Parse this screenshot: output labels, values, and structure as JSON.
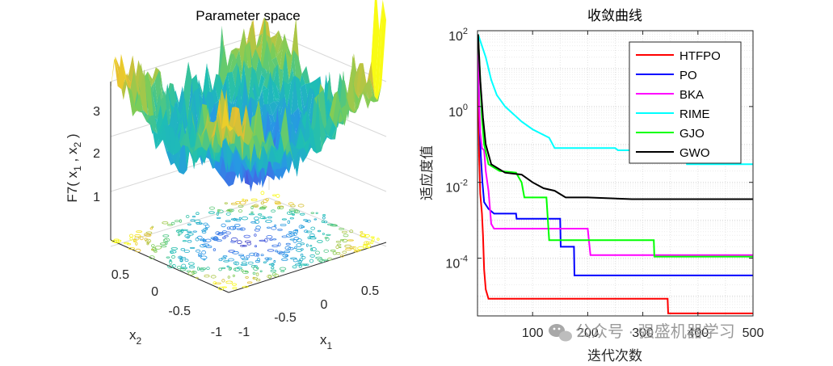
{
  "chart_data": [
    {
      "type": "surface3d",
      "title": "Parameter space",
      "zlabel": "F7( x",
      "zlabel_sub1": "1",
      "zlabel_sep": " , x",
      "zlabel_sub2": "2",
      "zlabel_end": " )",
      "xlabel": "x",
      "xlabel_sub": "1",
      "ylabel": "x",
      "ylabel_sub": "2",
      "z_ticks": [
        "1",
        "2",
        "3"
      ],
      "x1_ticks": [
        "-1",
        "-0.5",
        "0",
        "0.5"
      ],
      "x2_ticks": [
        "-1",
        "-0.5",
        "0",
        "0.5"
      ],
      "xlim": [
        -1,
        1
      ],
      "ylim": [
        -1,
        1
      ],
      "zlim": [
        0,
        3.5
      ]
    },
    {
      "type": "line",
      "title": "收敛曲线",
      "xlabel": "迭代次数",
      "ylabel": "适应度值",
      "yscale": "log",
      "xlim": [
        0,
        500
      ],
      "ylim": [
        3e-06,
        100
      ],
      "x_ticks": [
        "100",
        "200",
        "300",
        "400",
        "500"
      ],
      "y_ticks": [
        {
          "base": "10",
          "exp": "2",
          "value": 100
        },
        {
          "base": "10",
          "exp": "0",
          "value": 1
        },
        {
          "base": "10",
          "exp": "-2",
          "value": 0.01
        },
        {
          "base": "10",
          "exp": "-4",
          "value": 0.0001
        }
      ],
      "series": [
        {
          "name": "HTFPO",
          "color": "#ff0000",
          "points": [
            [
              1,
              80
            ],
            [
              2,
              0.6
            ],
            [
              3,
              0.05
            ],
            [
              5,
              0.005
            ],
            [
              8,
              0.0015
            ],
            [
              10,
              0.0004
            ],
            [
              12,
              5e-05
            ],
            [
              15,
              1.5e-05
            ],
            [
              20,
              8.5e-06
            ],
            [
              170,
              8.5e-06
            ],
            [
              345,
              8.5e-06
            ],
            [
              346,
              3.5e-06
            ],
            [
              500,
              3.5e-06
            ]
          ]
        },
        {
          "name": "PO",
          "color": "#0000ff",
          "points": [
            [
              1,
              80
            ],
            [
              2,
              5
            ],
            [
              4,
              0.3
            ],
            [
              6,
              0.05
            ],
            [
              9,
              0.01
            ],
            [
              12,
              0.003
            ],
            [
              20,
              0.002
            ],
            [
              30,
              0.0015
            ],
            [
              70,
              0.0015
            ],
            [
              71,
              0.0011
            ],
            [
              150,
              0.0011
            ],
            [
              151,
              0.0002
            ],
            [
              175,
              0.0002
            ],
            [
              176,
              3.5e-05
            ],
            [
              500,
              3.5e-05
            ]
          ]
        },
        {
          "name": "BKA",
          "color": "#ff00ff",
          "points": [
            [
              1,
              80
            ],
            [
              3,
              1
            ],
            [
              5,
              0.2
            ],
            [
              8,
              0.08
            ],
            [
              12,
              0.07
            ],
            [
              15,
              0.02
            ],
            [
              20,
              0.006
            ],
            [
              25,
              0.0008
            ],
            [
              30,
              0.0006
            ],
            [
              200,
              0.0006
            ],
            [
              205,
              0.00012
            ],
            [
              500,
              0.00012
            ]
          ]
        },
        {
          "name": "RIME",
          "color": "#00ffff",
          "points": [
            [
              1,
              80
            ],
            [
              15,
              20
            ],
            [
              25,
              5
            ],
            [
              35,
              2
            ],
            [
              50,
              1
            ],
            [
              80,
              0.4
            ],
            [
              100,
              0.25
            ],
            [
              130,
              0.15
            ],
            [
              140,
              0.08
            ],
            [
              250,
              0.08
            ],
            [
              255,
              0.07
            ],
            [
              375,
              0.07
            ],
            [
              380,
              0.03
            ],
            [
              500,
              0.03
            ]
          ]
        },
        {
          "name": "GJO",
          "color": "#00ff00",
          "points": [
            [
              1,
              80
            ],
            [
              5,
              5
            ],
            [
              8,
              0.5
            ],
            [
              12,
              0.1
            ],
            [
              20,
              0.03
            ],
            [
              40,
              0.02
            ],
            [
              70,
              0.018
            ],
            [
              80,
              0.01
            ],
            [
              85,
              0.004
            ],
            [
              125,
              0.004
            ],
            [
              130,
              0.0003
            ],
            [
              320,
              0.0003
            ],
            [
              321,
              0.00011
            ],
            [
              500,
              0.00011
            ]
          ]
        },
        {
          "name": "GWO",
          "color": "#000000",
          "points": [
            [
              1,
              80
            ],
            [
              5,
              5
            ],
            [
              10,
              0.5
            ],
            [
              15,
              0.1
            ],
            [
              25,
              0.03
            ],
            [
              50,
              0.018
            ],
            [
              80,
              0.016
            ],
            [
              100,
              0.01
            ],
            [
              120,
              0.007
            ],
            [
              140,
              0.006
            ],
            [
              160,
              0.004
            ],
            [
              200,
              0.004
            ],
            [
              280,
              0.0036
            ],
            [
              500,
              0.0036
            ]
          ]
        }
      ],
      "legend": "top-right"
    }
  ],
  "watermark": "公众号 · 强盛机器学习"
}
